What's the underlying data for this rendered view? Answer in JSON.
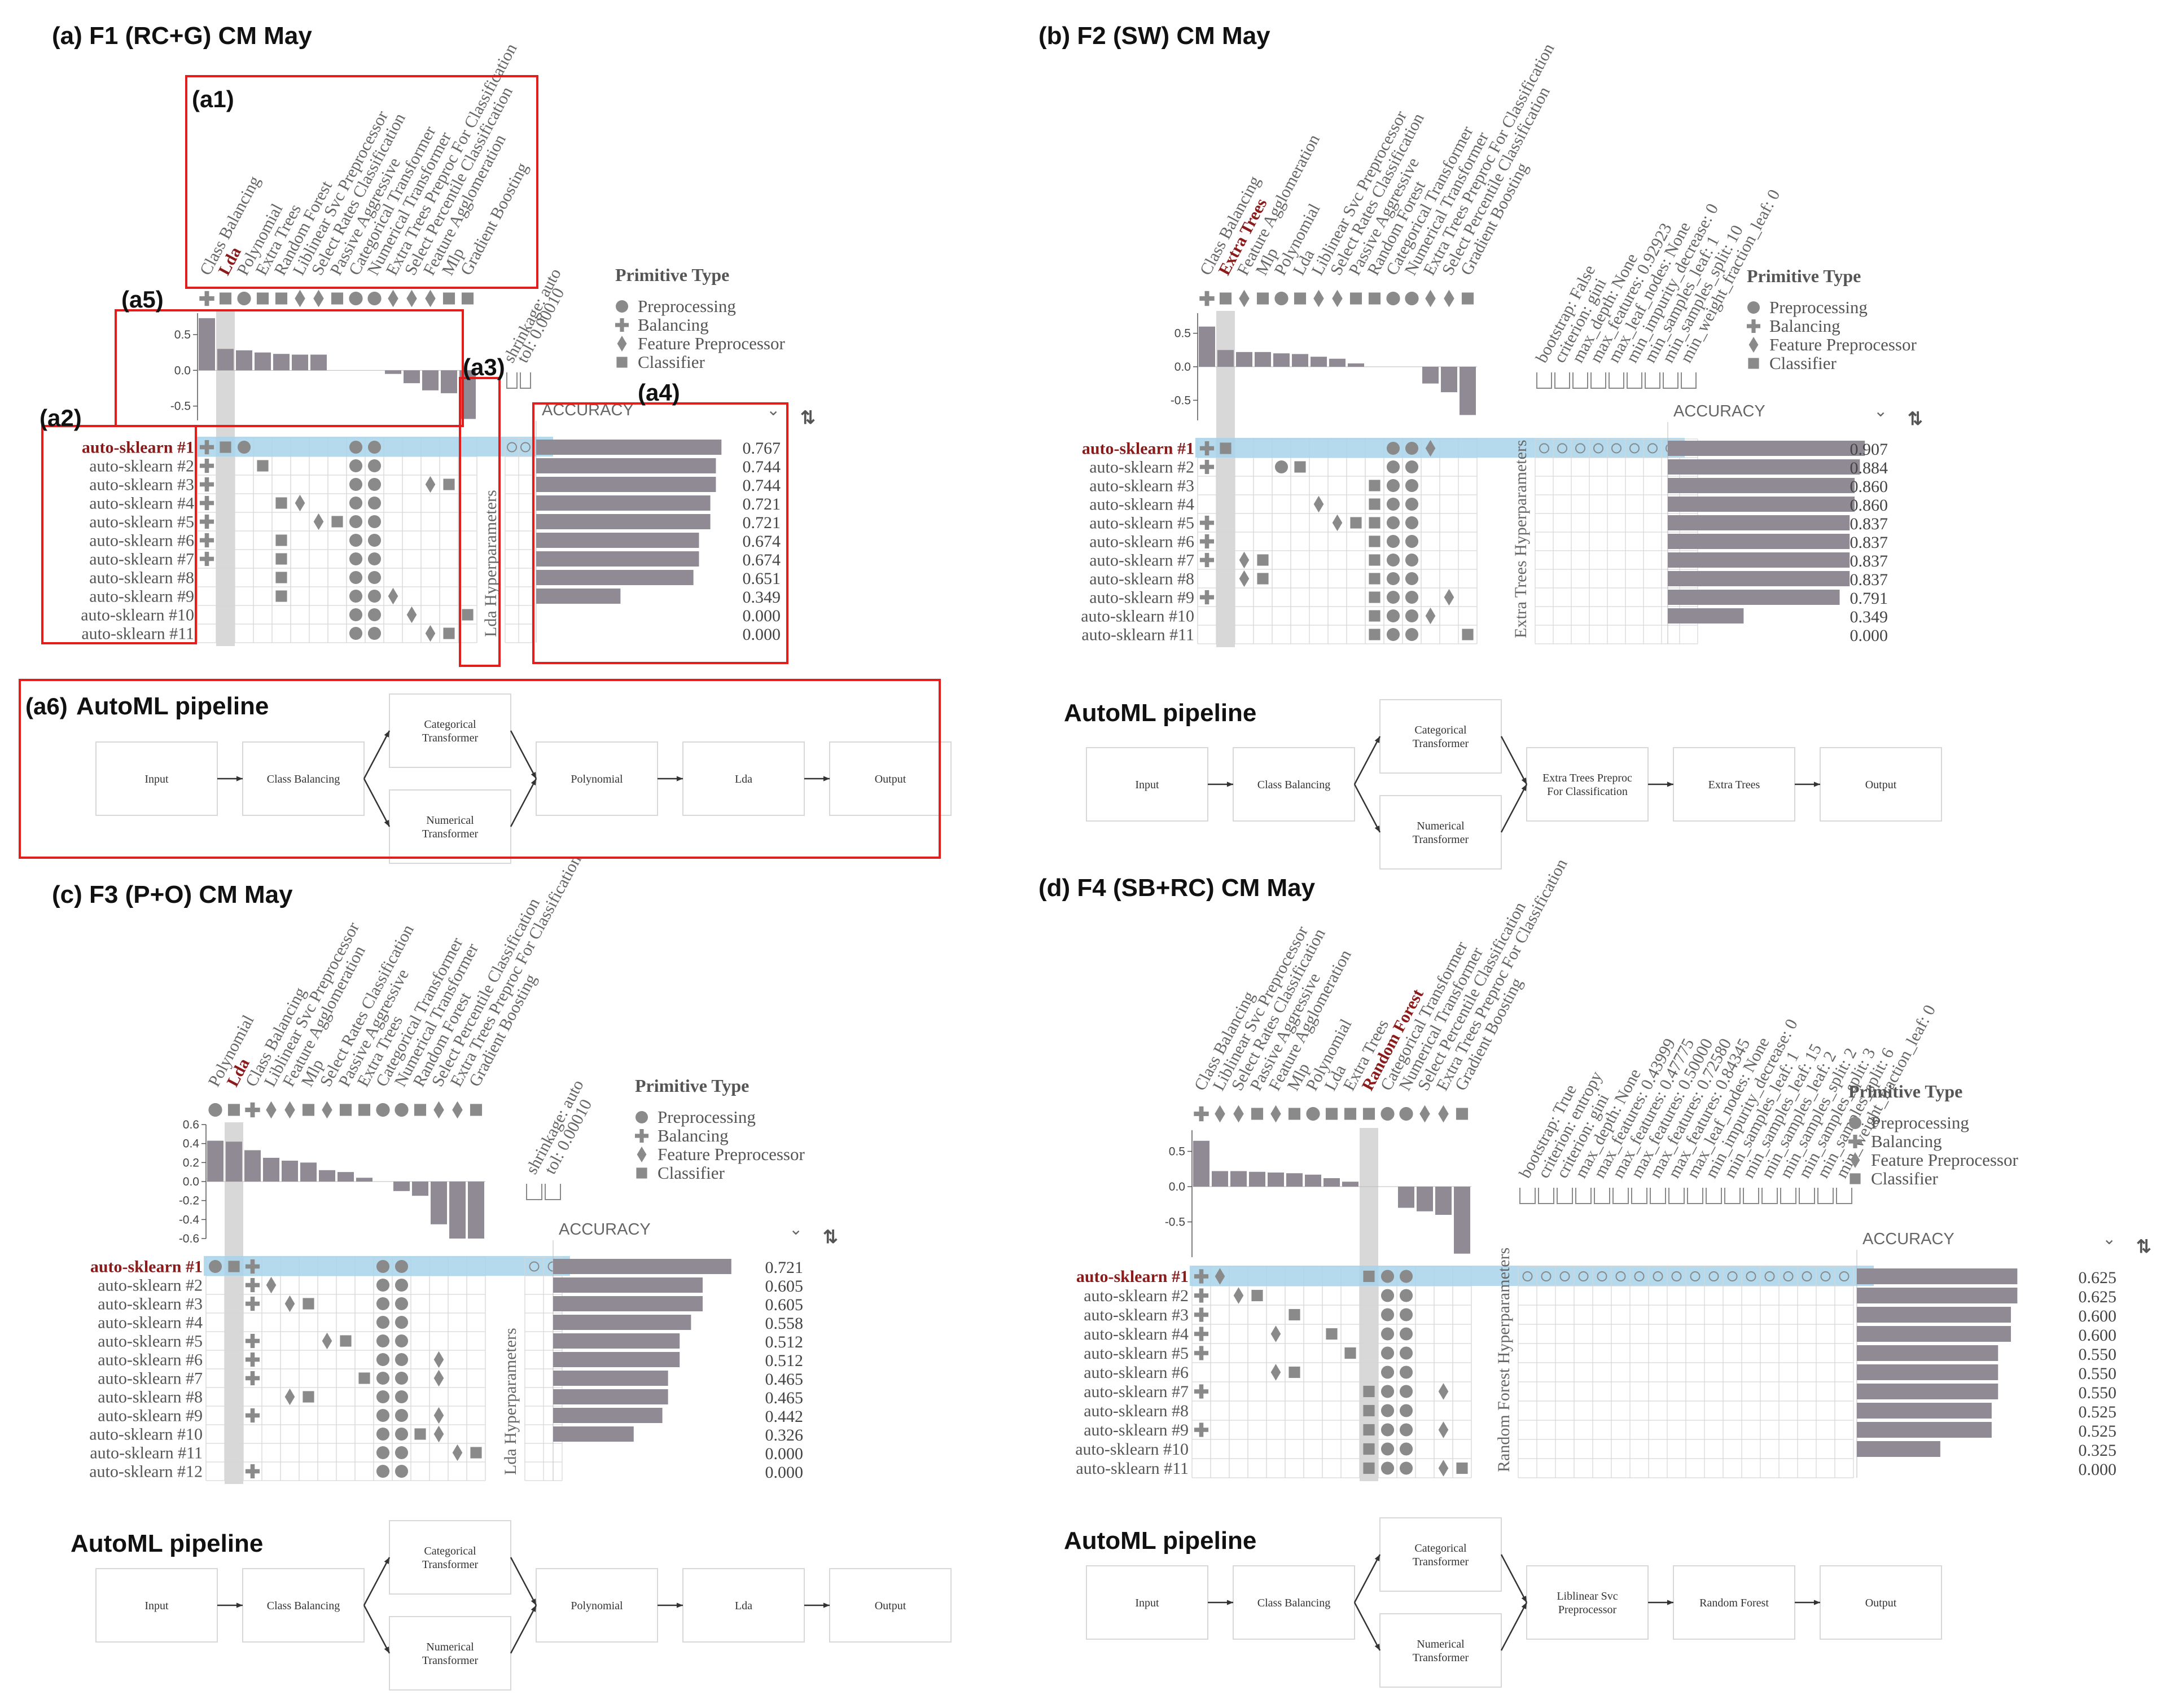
{
  "legend": {
    "title": "Primitive Type",
    "items": [
      {
        "label": "Preprocessing",
        "shape": "circle"
      },
      {
        "label": "Balancing",
        "shape": "plus"
      },
      {
        "label": "Feature Preprocessor",
        "shape": "diamond"
      },
      {
        "label": "Classifier",
        "shape": "square"
      }
    ]
  },
  "sort_label": "ACCURACY",
  "colors": {
    "highlight_row": "#a8d4ea",
    "highlight_col": "#d8d8d8",
    "bar": "#8f8a93",
    "red_box": "#e31c1c",
    "label_red": "#8b1a1a"
  },
  "annotations": [
    "(a1)",
    "(a2)",
    "(a3)",
    "(a4)",
    "(a5)",
    "(a6)"
  ],
  "chart_data": [
    {
      "type": "bar",
      "title": "(a) F1 (RC+G) CM May",
      "primitives": [
        "Class Balancing",
        "Lda",
        "Polynomial",
        "Extra Trees",
        "Random Forest",
        "Liblinear Svc Preprocessor",
        "Select Rates Classification",
        "Passive Aggressive",
        "Categorical Transformer",
        "Numerical Transformer",
        "Extra Trees Preproc For Classification",
        "Select Percentile Classification",
        "Feature Agglomeration",
        "Mlp",
        "Gradient Boosting"
      ],
      "types": [
        "B",
        "C",
        "P",
        "C",
        "C",
        "F",
        "F",
        "C",
        "P",
        "P",
        "F",
        "F",
        "F",
        "C",
        "C"
      ],
      "highlight_primitive": "Lda",
      "correlation": [
        0.73,
        0.3,
        0.28,
        0.25,
        0.23,
        0.22,
        0.22,
        0,
        0,
        0,
        -0.05,
        -0.18,
        -0.28,
        -0.32,
        -0.68
      ],
      "ylim": [
        -0.7,
        0.8
      ],
      "yticks": [
        "0.5",
        "0.0",
        "-0.5"
      ],
      "hyper_title": "Lda Hyperparameters",
      "hyperparameters": [
        "shrinkage: auto",
        "tol: 0.00010"
      ],
      "pipelines": [
        "auto-sklearn #1",
        "auto-sklearn #2",
        "auto-sklearn #3",
        "auto-sklearn #4",
        "auto-sklearn #5",
        "auto-sklearn #6",
        "auto-sklearn #7",
        "auto-sklearn #8",
        "auto-sklearn #9",
        "auto-sklearn #10",
        "auto-sklearn #11"
      ],
      "accuracy": [
        0.767,
        0.744,
        0.744,
        0.721,
        0.721,
        0.674,
        0.674,
        0.651,
        0.349,
        0.0,
        0.0
      ],
      "accuracy_labels": [
        "0.767",
        "0.744",
        "0.744",
        "0.721",
        "0.721",
        "0.674",
        "0.674",
        "0.651",
        "0.349",
        "0.000",
        "0.000"
      ],
      "usage": [
        [
          0,
          1,
          2,
          8,
          9
        ],
        [
          0,
          3,
          8,
          9
        ],
        [
          0,
          8,
          9,
          12,
          13
        ],
        [
          0,
          4,
          5,
          8,
          9
        ],
        [
          0,
          6,
          7,
          8,
          9
        ],
        [
          0,
          4,
          8,
          9
        ],
        [
          0,
          4,
          8,
          9
        ],
        [
          4,
          8,
          9
        ],
        [
          4,
          8,
          9,
          10
        ],
        [
          8,
          9,
          11,
          14
        ],
        [
          8,
          9,
          12,
          13
        ]
      ],
      "pipeline_title": "AutoML pipeline",
      "pipeline_nodes": [
        "Input",
        "Class Balancing",
        "Categorical Transformer",
        "Numerical Transformer",
        "Polynomial",
        "Lda",
        "Output"
      ]
    },
    {
      "type": "bar",
      "title": "(b) F2 (SW) CM May",
      "primitives": [
        "Class Balancing",
        "Extra Trees",
        "Feature Agglomeration",
        "Mlp",
        "Polynomial",
        "Lda",
        "Liblinear Svc Preprocessor",
        "Select Rates Classification",
        "Passive Aggressive",
        "Random Forest",
        "Categorical Transformer",
        "Numerical Transformer",
        "Extra Trees Preproc For Classification",
        "Select Percentile Classification",
        "Gradient Boosting"
      ],
      "types": [
        "B",
        "C",
        "F",
        "C",
        "P",
        "C",
        "F",
        "F",
        "C",
        "C",
        "P",
        "P",
        "F",
        "F",
        "C"
      ],
      "highlight_primitive": "Extra Trees",
      "correlation": [
        0.6,
        0.25,
        0.22,
        0.22,
        0.2,
        0.19,
        0.15,
        0.12,
        0.05,
        0,
        0,
        0,
        -0.25,
        -0.38,
        -0.72
      ],
      "ylim": [
        -0.8,
        0.8
      ],
      "yticks": [
        "0.5",
        "0.0",
        "-0.5"
      ],
      "hyper_title": "Extra Trees Hyperparameters",
      "hyperparameters": [
        "bootstrap: False",
        "criterion: gini",
        "max_depth: None",
        "max_features: 0.92923",
        "max_leaf_nodes: None",
        "min_impurity_decrease: 0",
        "min_samples_leaf: 1",
        "min_samples_split: 10",
        "min_weight_fraction_leaf: 0"
      ],
      "pipelines": [
        "auto-sklearn #1",
        "auto-sklearn #2",
        "auto-sklearn #3",
        "auto-sklearn #4",
        "auto-sklearn #5",
        "auto-sklearn #6",
        "auto-sklearn #7",
        "auto-sklearn #8",
        "auto-sklearn #9",
        "auto-sklearn #10",
        "auto-sklearn #11"
      ],
      "accuracy": [
        0.907,
        0.884,
        0.86,
        0.86,
        0.837,
        0.837,
        0.837,
        0.837,
        0.791,
        0.349,
        0.0
      ],
      "accuracy_labels": [
        "0.907",
        "0.884",
        "0.860",
        "0.860",
        "0.837",
        "0.837",
        "0.837",
        "0.837",
        "0.791",
        "0.349",
        "0.000"
      ],
      "usage": [
        [
          0,
          1,
          10,
          11,
          12
        ],
        [
          0,
          4,
          5,
          10,
          11
        ],
        [
          9,
          10,
          11
        ],
        [
          6,
          9,
          10,
          11
        ],
        [
          0,
          7,
          8,
          9,
          10,
          11
        ],
        [
          0,
          9,
          10,
          11
        ],
        [
          0,
          2,
          3,
          9,
          10,
          11
        ],
        [
          2,
          3,
          9,
          10,
          11
        ],
        [
          0,
          9,
          10,
          11,
          13
        ],
        [
          9,
          10,
          11,
          12
        ],
        [
          9,
          10,
          11,
          14
        ]
      ],
      "pipeline_title": "AutoML pipeline",
      "pipeline_nodes": [
        "Input",
        "Class Balancing",
        "Categorical Transformer",
        "Numerical Transformer",
        "Extra Trees Preproc For Classification",
        "Extra Trees",
        "Output"
      ]
    },
    {
      "type": "bar",
      "title": "(c) F3 (P+O) CM May",
      "primitives": [
        "Polynomial",
        "Lda",
        "Class Balancing",
        "Liblinear Svc Preprocessor",
        "Feature Agglomeration",
        "Mlp",
        "Select Rates Classification",
        "Passive Aggressive",
        "Extra Trees",
        "Categorical Transformer",
        "Numerical Transformer",
        "Random Forest",
        "Select Percentile Classification",
        "Extra Trees Preproc For Classification",
        "Gradient Boosting"
      ],
      "types": [
        "P",
        "C",
        "B",
        "F",
        "F",
        "C",
        "F",
        "C",
        "C",
        "P",
        "P",
        "C",
        "F",
        "F",
        "C"
      ],
      "highlight_primitive": "Lda",
      "correlation": [
        0.43,
        0.42,
        0.33,
        0.25,
        0.22,
        0.2,
        0.12,
        0.1,
        0.04,
        0,
        -0.1,
        -0.15,
        -0.45,
        -0.6,
        -0.6
      ],
      "ylim": [
        -0.6,
        0.6
      ],
      "yticks": [
        "0.6",
        "0.4",
        "0.2",
        "0.0",
        "-0.2",
        "-0.4",
        "-0.6"
      ],
      "hyper_title": "Lda Hyperparameters",
      "hyperparameters": [
        "shrinkage: auto",
        "tol: 0.00010"
      ],
      "pipelines": [
        "auto-sklearn #1",
        "auto-sklearn #2",
        "auto-sklearn #3",
        "auto-sklearn #4",
        "auto-sklearn #5",
        "auto-sklearn #6",
        "auto-sklearn #7",
        "auto-sklearn #8",
        "auto-sklearn #9",
        "auto-sklearn #10",
        "auto-sklearn #11",
        "auto-sklearn #12"
      ],
      "accuracy": [
        0.721,
        0.605,
        0.605,
        0.558,
        0.512,
        0.512,
        0.465,
        0.465,
        0.442,
        0.326,
        0.0,
        0.0
      ],
      "accuracy_labels": [
        "0.721",
        "0.605",
        "0.605",
        "0.558",
        "0.512",
        "0.512",
        "0.465",
        "0.465",
        "0.442",
        "0.326",
        "0.000",
        "0.000"
      ],
      "usage": [
        [
          0,
          1,
          2,
          9,
          10
        ],
        [
          2,
          3,
          9,
          10
        ],
        [
          2,
          4,
          5,
          9,
          10
        ],
        [
          9,
          10
        ],
        [
          2,
          6,
          7,
          9,
          10
        ],
        [
          2,
          9,
          10,
          12
        ],
        [
          2,
          8,
          9,
          10,
          12
        ],
        [
          4,
          5,
          9,
          10
        ],
        [
          2,
          9,
          10,
          12
        ],
        [
          9,
          10,
          11,
          12
        ],
        [
          9,
          10,
          13,
          14
        ],
        [
          2,
          9,
          10
        ]
      ],
      "pipeline_title": "AutoML pipeline",
      "pipeline_nodes": [
        "Input",
        "Class Balancing",
        "Categorical Transformer",
        "Numerical Transformer",
        "Polynomial",
        "Lda",
        "Output"
      ]
    },
    {
      "type": "bar",
      "title": "(d) F4 (SB+RC) CM May",
      "primitives": [
        "Class Balancing",
        "Liblinear Svc Preprocessor",
        "Select Rates Classification",
        "Passive Aggressive",
        "Feature Agglomeration",
        "Mlp",
        "Polynomial",
        "Lda",
        "Extra Trees",
        "Random Forest",
        "Categorical Transformer",
        "Numerical Transformer",
        "Select Percentile Classification",
        "Extra Trees Preproc For Classification",
        "Gradient Boosting"
      ],
      "types": [
        "B",
        "F",
        "F",
        "C",
        "F",
        "C",
        "P",
        "C",
        "C",
        "C",
        "P",
        "P",
        "F",
        "F",
        "C"
      ],
      "highlight_primitive": "Random Forest",
      "correlation": [
        0.65,
        0.22,
        0.22,
        0.21,
        0.2,
        0.19,
        0.17,
        0.12,
        0.07,
        0,
        0,
        -0.3,
        -0.35,
        -0.4,
        -0.95
      ],
      "ylim": [
        -1.0,
        0.8
      ],
      "yticks": [
        "0.5",
        "0.0",
        "-0.5"
      ],
      "hyper_title": "Random Forest Hyperparameters",
      "hyperparameters": [
        "bootstrap: True",
        "criterion: entropy",
        "criterion: gini",
        "max_depth: None",
        "max_features: 0.43999",
        "max_features: 0.47775",
        "max_features: 0.50000",
        "max_features: 0.72580",
        "max_features: 0.84345",
        "max_leaf_nodes: None",
        "min_impurity_decrease: 0",
        "min_samples_leaf: 1",
        "min_samples_leaf: 15",
        "min_samples_leaf: 2",
        "min_samples_split: 2",
        "min_samples_split: 3",
        "min_samples_split: 6",
        "min_weight_fraction_leaf: 0"
      ],
      "pipelines": [
        "auto-sklearn #1",
        "auto-sklearn #2",
        "auto-sklearn #3",
        "auto-sklearn #4",
        "auto-sklearn #5",
        "auto-sklearn #6",
        "auto-sklearn #7",
        "auto-sklearn #8",
        "auto-sklearn #9",
        "auto-sklearn #10",
        "auto-sklearn #11"
      ],
      "accuracy": [
        0.625,
        0.625,
        0.6,
        0.6,
        0.55,
        0.55,
        0.55,
        0.525,
        0.525,
        0.325,
        0.0
      ],
      "accuracy_labels": [
        "0.625",
        "0.625",
        "0.600",
        "0.600",
        "0.550",
        "0.550",
        "0.550",
        "0.525",
        "0.525",
        "0.325",
        "0.000"
      ],
      "usage": [
        [
          0,
          1,
          9,
          10,
          11
        ],
        [
          0,
          2,
          3,
          10,
          11
        ],
        [
          0,
          5,
          10,
          11
        ],
        [
          0,
          4,
          7,
          10,
          11
        ],
        [
          0,
          8,
          10,
          11
        ],
        [
          4,
          5,
          10,
          11
        ],
        [
          0,
          9,
          10,
          11,
          13
        ],
        [
          9,
          10,
          11
        ],
        [
          0,
          9,
          10,
          11,
          13
        ],
        [
          9,
          10,
          11
        ],
        [
          9,
          10,
          11,
          13,
          14
        ]
      ],
      "pipeline_title": "AutoML pipeline",
      "pipeline_nodes": [
        "Input",
        "Class Balancing",
        "Categorical Transformer",
        "Numerical Transformer",
        "Liblinear Svc Preprocessor",
        "Random Forest",
        "Output"
      ]
    }
  ]
}
